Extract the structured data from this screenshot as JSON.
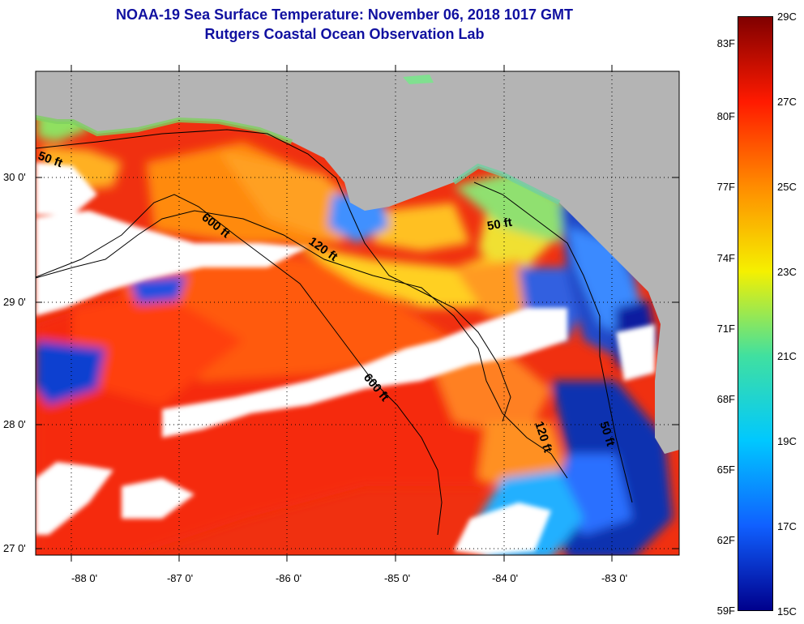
{
  "title": {
    "line1": "NOAA-19 Sea Surface Temperature:  November 06, 2018 1017 GMT",
    "line2": "Rutgers Coastal Ocean Observation Lab"
  },
  "map": {
    "lat_labels": [
      "30 0'",
      "29 0'",
      "28 0'",
      "27 0'"
    ],
    "lon_labels": [
      "-88 0'",
      "-87 0'",
      "-86 0'",
      "-85 0'",
      "-84 0'",
      "-83 0'"
    ],
    "contour_labels": [
      "50 ft",
      "600 ft",
      "120 ft",
      "50 ft",
      "600 ft",
      "120 ft",
      "50 ft"
    ]
  },
  "colorbar": {
    "fahrenheit": [
      "83F",
      "80F",
      "77F",
      "74F",
      "71F",
      "68F",
      "65F",
      "62F",
      "59F"
    ],
    "celsius": [
      "29C",
      "27C",
      "25C",
      "23C",
      "21C",
      "19C",
      "17C",
      "15C"
    ],
    "colors": {
      "c29": "#800000",
      "c27": "#ff1a00",
      "c25": "#ff8c00",
      "c23": "#f5f000",
      "c21": "#40e0a0",
      "c19": "#00c8ff",
      "c17": "#1060ff",
      "c15": "#00008c"
    }
  },
  "colors": {
    "land": "#b4b4b4",
    "cloud": "#ffffff",
    "title": "#1010a0"
  }
}
